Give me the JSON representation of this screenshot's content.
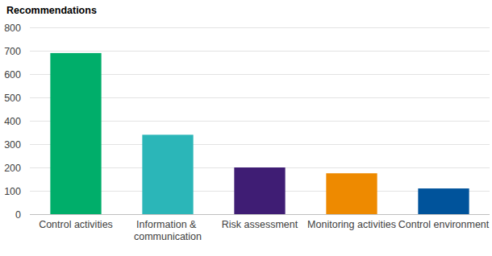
{
  "chart_data": {
    "type": "bar",
    "y_label": "Recommendations",
    "categories": [
      "Control activities",
      "Information & communication",
      "Risk assessment",
      "Monitoring activities",
      "Control environment"
    ],
    "values": [
      690,
      340,
      200,
      175,
      110
    ],
    "colors": [
      "#00ae6a",
      "#2bb6b8",
      "#3f1d74",
      "#ee8a00",
      "#00539b"
    ],
    "ylim": [
      0,
      800
    ],
    "yticks": [
      0,
      100,
      200,
      300,
      400,
      500,
      600,
      700,
      800
    ],
    "grid": true
  }
}
